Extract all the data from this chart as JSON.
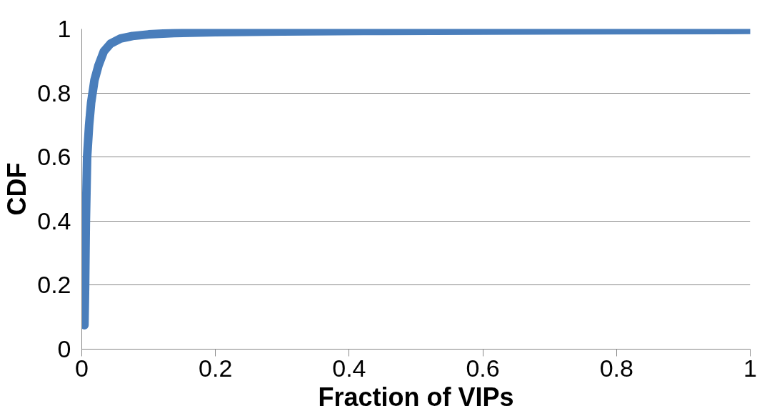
{
  "chart_data": {
    "type": "line",
    "xlabel": "Fraction of VIPs",
    "ylabel": "CDF",
    "x": [
      0.004,
      0.005,
      0.006,
      0.008,
      0.011,
      0.014,
      0.019,
      0.025,
      0.033,
      0.043,
      0.058,
      0.076,
      0.1,
      0.138,
      0.2,
      0.3,
      0.45,
      0.6,
      0.8,
      1.0
    ],
    "series": [
      {
        "color": "#4a7ebb",
        "values": [
          0.075,
          0.2,
          0.385,
          0.6,
          0.7,
          0.77,
          0.84,
          0.886,
          0.93,
          0.954,
          0.97,
          0.978,
          0.983,
          0.987,
          0.99,
          0.992,
          0.994,
          0.995,
          0.996,
          0.997
        ]
      }
    ],
    "xlim": [
      0,
      1
    ],
    "ylim": [
      0,
      1
    ],
    "xticks": [
      0,
      0.2,
      0.4,
      0.6,
      0.8,
      1
    ],
    "yticks": [
      0,
      0.2,
      0.4,
      0.6,
      0.8,
      1
    ],
    "grid": "y",
    "marker": "none",
    "line_style": "solid"
  }
}
